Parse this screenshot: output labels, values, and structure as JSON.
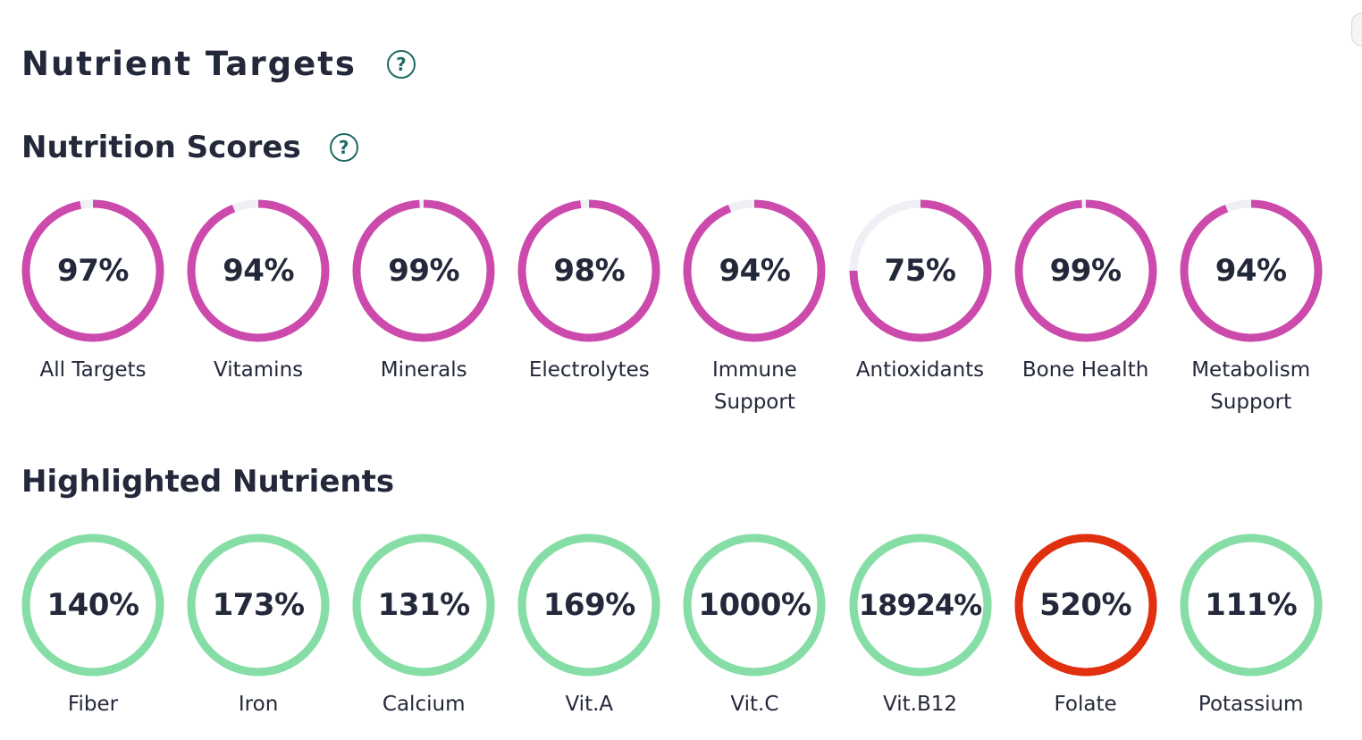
{
  "header": {
    "title": "Nutrient Targets",
    "help_glyph": "?"
  },
  "scores": {
    "title": "Nutrition Scores",
    "help_glyph": "?",
    "ring_color": "#cc4aac",
    "track_color": "#eef0f6",
    "items": [
      {
        "value_text": "97%",
        "fraction": 0.97,
        "label": "All Targets"
      },
      {
        "value_text": "94%",
        "fraction": 0.94,
        "label": "Vitamins"
      },
      {
        "value_text": "99%",
        "fraction": 0.99,
        "label": "Minerals"
      },
      {
        "value_text": "98%",
        "fraction": 0.98,
        "label": "Electrolytes"
      },
      {
        "value_text": "94%",
        "fraction": 0.94,
        "label": "Immune\nSupport"
      },
      {
        "value_text": "75%",
        "fraction": 0.75,
        "label": "Antioxidants"
      },
      {
        "value_text": "99%",
        "fraction": 0.99,
        "label": "Bone Health"
      },
      {
        "value_text": "94%",
        "fraction": 0.94,
        "label": "Metabolism\nSupport"
      }
    ]
  },
  "nutrients": {
    "title": "Highlighted Nutrients",
    "ok_color": "#86dea6",
    "over_color": "#e0300f",
    "items": [
      {
        "value_text": "140%",
        "fraction": 1.0,
        "status": "ok",
        "label": "Fiber"
      },
      {
        "value_text": "173%",
        "fraction": 1.0,
        "status": "ok",
        "label": "Iron"
      },
      {
        "value_text": "131%",
        "fraction": 1.0,
        "status": "ok",
        "label": "Calcium"
      },
      {
        "value_text": "169%",
        "fraction": 1.0,
        "status": "ok",
        "label": "Vit.A"
      },
      {
        "value_text": "1000%",
        "fraction": 1.0,
        "status": "ok",
        "label": "Vit.C"
      },
      {
        "value_text": "18924%",
        "fraction": 1.0,
        "status": "ok",
        "label": "Vit.B12"
      },
      {
        "value_text": "520%",
        "fraction": 1.0,
        "status": "over",
        "label": "Folate"
      },
      {
        "value_text": "111%",
        "fraction": 1.0,
        "status": "ok",
        "label": "Potassium"
      }
    ]
  }
}
